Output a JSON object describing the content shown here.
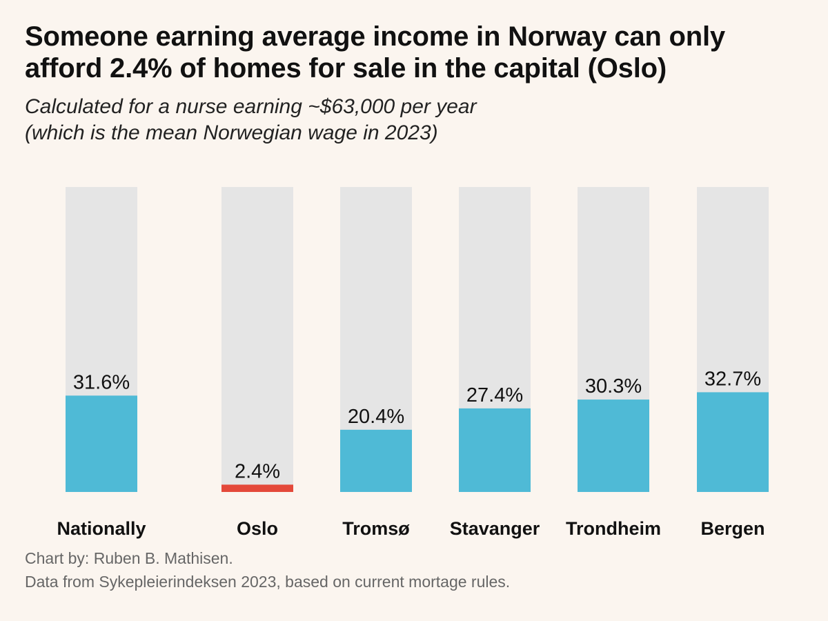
{
  "title_lines": [
    "Someone earning average income in Norway can only",
    "afford 2.4% of homes for sale in the capital (Oslo)"
  ],
  "subtitle_lines": [
    "Calculated for a nurse earning ~$63,000 per year",
    "(which is the mean Norwegian wage in 2023)"
  ],
  "footer": {
    "credit": "Chart by: Ruben B. Mathisen.",
    "source": "Data from Sykepleierindeksen 2023, based on current mortage rules."
  },
  "colors": {
    "background": "#fbf5ef",
    "track": "#e5e5e5",
    "bar": "#4fbad6",
    "highlight": "#e4493a",
    "text": "#111111"
  },
  "chart_data": {
    "type": "bar",
    "title": "Someone earning average income in Norway can only afford 2.4% of homes for sale in the capital (Oslo)",
    "subtitle": "Calculated for a nurse earning ~$63,000 per year (which is the mean Norwegian wage in 2023)",
    "xlabel": "",
    "ylabel": "",
    "ylim": [
      0,
      100
    ],
    "grid": false,
    "categories": [
      "Nationally",
      "Oslo",
      "Tromsø",
      "Stavanger",
      "Trondheim",
      "Bergen"
    ],
    "values": [
      31.6,
      2.4,
      20.4,
      27.4,
      30.3,
      32.7
    ],
    "labels": [
      "31.6%",
      "2.4%",
      "20.4%",
      "27.4%",
      "30.3%",
      "32.7%"
    ],
    "highlight": "Oslo"
  }
}
